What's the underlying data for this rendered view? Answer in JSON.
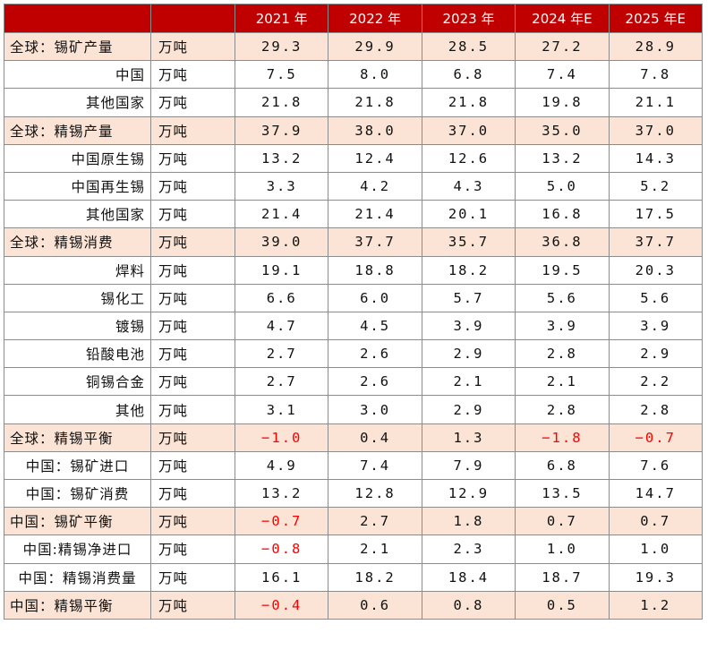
{
  "header": {
    "columns": [
      "",
      "",
      "2021 年",
      "2022 年",
      "2023 年",
      "2024 年E",
      "2025 年E"
    ]
  },
  "colors": {
    "header_bg": "#c00000",
    "highlight_bg": "#fbe4d5",
    "negative_text": "#ff0000"
  },
  "rows": [
    {
      "label": "全球：锡矿产量",
      "unit": "万吨",
      "values": [
        "29.3",
        "29.9",
        "28.5",
        "27.2",
        "28.9"
      ],
      "highlight": true,
      "indent": 0
    },
    {
      "label": "中国",
      "unit": "万吨",
      "values": [
        "7.5",
        "8.0",
        "6.8",
        "7.4",
        "7.8"
      ],
      "highlight": false,
      "indent": 1
    },
    {
      "label": "其他国家",
      "unit": "万吨",
      "values": [
        "21.8",
        "21.8",
        "21.8",
        "19.8",
        "21.1"
      ],
      "highlight": false,
      "indent": 1
    },
    {
      "label": "全球：精锡产量",
      "unit": "万吨",
      "values": [
        "37.9",
        "38.0",
        "37.0",
        "35.0",
        "37.0"
      ],
      "highlight": true,
      "indent": 0
    },
    {
      "label": "中国原生锡",
      "unit": "万吨",
      "values": [
        "13.2",
        "12.4",
        "12.6",
        "13.2",
        "14.3"
      ],
      "highlight": false,
      "indent": 1
    },
    {
      "label": "中国再生锡",
      "unit": "万吨",
      "values": [
        "3.3",
        "4.2",
        "4.3",
        "5.0",
        "5.2"
      ],
      "highlight": false,
      "indent": 1
    },
    {
      "label": "其他国家",
      "unit": "万吨",
      "values": [
        "21.4",
        "21.4",
        "20.1",
        "16.8",
        "17.5"
      ],
      "highlight": false,
      "indent": 1
    },
    {
      "label": "全球：精锡消费",
      "unit": "万吨",
      "values": [
        "39.0",
        "37.7",
        "35.7",
        "36.8",
        "37.7"
      ],
      "highlight": true,
      "indent": 0
    },
    {
      "label": "焊料",
      "unit": "万吨",
      "values": [
        "19.1",
        "18.8",
        "18.2",
        "19.5",
        "20.3"
      ],
      "highlight": false,
      "indent": 1
    },
    {
      "label": "锡化工",
      "unit": "万吨",
      "values": [
        "6.6",
        "6.0",
        "5.7",
        "5.6",
        "5.6"
      ],
      "highlight": false,
      "indent": 1
    },
    {
      "label": "镀锡",
      "unit": "万吨",
      "values": [
        "4.7",
        "4.5",
        "3.9",
        "3.9",
        "3.9"
      ],
      "highlight": false,
      "indent": 1
    },
    {
      "label": "铅酸电池",
      "unit": "万吨",
      "values": [
        "2.7",
        "2.6",
        "2.9",
        "2.8",
        "2.9"
      ],
      "highlight": false,
      "indent": 1
    },
    {
      "label": "铜锡合金",
      "unit": "万吨",
      "values": [
        "2.7",
        "2.6",
        "2.1",
        "2.1",
        "2.2"
      ],
      "highlight": false,
      "indent": 1
    },
    {
      "label": "其他",
      "unit": "万吨",
      "values": [
        "3.1",
        "3.0",
        "2.9",
        "2.8",
        "2.8"
      ],
      "highlight": false,
      "indent": 1
    },
    {
      "label": "全球：精锡平衡",
      "unit": "万吨",
      "values": [
        "−1.0",
        "0.4",
        "1.3",
        "−1.8",
        "−0.7"
      ],
      "highlight": true,
      "indent": 0
    },
    {
      "label": "中国：锡矿进口",
      "unit": "万吨",
      "values": [
        "4.9",
        "7.4",
        "7.9",
        "6.8",
        "7.6"
      ],
      "highlight": false,
      "indent": 2
    },
    {
      "label": "中国：锡矿消费",
      "unit": "万吨",
      "values": [
        "13.2",
        "12.8",
        "12.9",
        "13.5",
        "14.7"
      ],
      "highlight": false,
      "indent": 2
    },
    {
      "label": "中国：锡矿平衡",
      "unit": "万吨",
      "values": [
        "−0.7",
        "2.7",
        "1.8",
        "0.7",
        "0.7"
      ],
      "highlight": true,
      "indent": 0
    },
    {
      "label": "中国:精锡净进口",
      "unit": "万吨",
      "values": [
        "−0.8",
        "2.1",
        "2.3",
        "1.0",
        "1.0"
      ],
      "highlight": false,
      "indent": 2
    },
    {
      "label": "中国：精锡消费量",
      "unit": "万吨",
      "values": [
        "16.1",
        "18.2",
        "18.4",
        "18.7",
        "19.3"
      ],
      "highlight": false,
      "indent": 2
    },
    {
      "label": "中国：精锡平衡",
      "unit": "万吨",
      "values": [
        "−0.4",
        "0.6",
        "0.8",
        "0.5",
        "1.2"
      ],
      "highlight": true,
      "indent": 0
    }
  ]
}
